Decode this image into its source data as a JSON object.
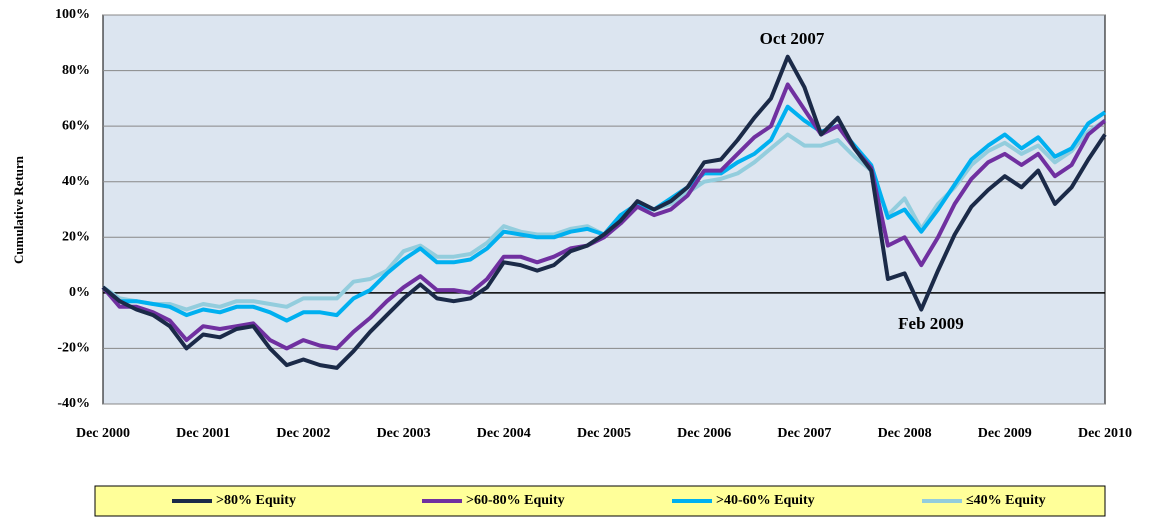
{
  "chart_data": {
    "type": "line",
    "y_label": "Cumulative Return",
    "annotations": [
      "Oct 2007",
      "Feb 2009"
    ],
    "categories": [
      "Dec 2000",
      null,
      null,
      null,
      null,
      null,
      "Dec 2001",
      null,
      null,
      null,
      null,
      null,
      "Dec 2002",
      null,
      null,
      null,
      null,
      null,
      "Dec 2003",
      null,
      null,
      null,
      null,
      null,
      "Dec 2004",
      null,
      null,
      null,
      null,
      null,
      "Dec 2005",
      null,
      null,
      null,
      null,
      null,
      "Dec 2006",
      null,
      null,
      null,
      null,
      null,
      "Dec 2007",
      null,
      null,
      null,
      null,
      null,
      "Dec 2008",
      null,
      null,
      null,
      null,
      null,
      "Dec 2009",
      null,
      null,
      null,
      null,
      null,
      "Dec 2010"
    ],
    "series": [
      {
        "name": ">80% Equity",
        "color": "#1b2a48",
        "values": [
          2,
          -3,
          -6,
          -8,
          -12,
          -20,
          -15,
          -16,
          -13,
          -12,
          -20,
          -26,
          -24,
          -26,
          -27,
          -21,
          -14,
          -8,
          -2,
          3,
          -2,
          -3,
          -2,
          2,
          11,
          10,
          8,
          10,
          15,
          17,
          21,
          26,
          33,
          30,
          33,
          38,
          47,
          48,
          55,
          63,
          70,
          85,
          74,
          57,
          63,
          52,
          44,
          5,
          7,
          -6,
          8,
          21,
          31,
          37,
          42,
          38,
          44,
          32,
          38,
          48,
          57
        ]
      },
      {
        "name": ">60-80% Equity",
        "color": "#7030a0",
        "values": [
          2,
          -5,
          -5,
          -7,
          -10,
          -17,
          -12,
          -13,
          -12,
          -11,
          -17,
          -20,
          -17,
          -19,
          -20,
          -14,
          -9,
          -3,
          2,
          6,
          1,
          1,
          0,
          5,
          13,
          13,
          11,
          13,
          16,
          17,
          20,
          25,
          31,
          28,
          30,
          35,
          44,
          44,
          50,
          56,
          60,
          75,
          66,
          57,
          60,
          52,
          45,
          17,
          20,
          10,
          20,
          32,
          41,
          47,
          50,
          46,
          50,
          42,
          46,
          57,
          62
        ]
      },
      {
        "name": ">40-60% Equity",
        "color": "#00b0f0",
        "values": [
          2,
          -3,
          -3,
          -4,
          -5,
          -8,
          -6,
          -7,
          -5,
          -5,
          -7,
          -10,
          -7,
          -7,
          -8,
          -2,
          1,
          7,
          12,
          16,
          11,
          11,
          12,
          16,
          22,
          21,
          20,
          20,
          22,
          23,
          21,
          28,
          32,
          30,
          34,
          38,
          43,
          43,
          47,
          50,
          55,
          67,
          62,
          58,
          60,
          53,
          46,
          27,
          30,
          22,
          30,
          39,
          48,
          53,
          57,
          52,
          56,
          49,
          52,
          61,
          65
        ]
      },
      {
        "name": "≤40% Equity",
        "color": "#93cddd",
        "values": [
          2,
          -2,
          -3,
          -4,
          -4,
          -6,
          -4,
          -5,
          -3,
          -3,
          -4,
          -5,
          -2,
          -2,
          -2,
          4,
          5,
          8,
          15,
          17,
          13,
          13,
          14,
          18,
          24,
          22,
          21,
          21,
          23,
          24,
          21,
          28,
          31,
          30,
          32,
          36,
          40,
          41,
          43,
          47,
          52,
          57,
          53,
          53,
          55,
          49,
          44,
          28,
          34,
          23,
          32,
          38,
          46,
          51,
          54,
          50,
          53,
          47,
          51,
          58,
          62
        ]
      }
    ],
    "ylim": [
      -40,
      100
    ],
    "yticks": [
      {
        "value": -40,
        "label": "-40%"
      },
      {
        "value": -20,
        "label": "-20%"
      },
      {
        "value": 0,
        "label": "0%"
      },
      {
        "value": 20,
        "label": "20%"
      },
      {
        "value": 40,
        "label": "40%"
      },
      {
        "value": 60,
        "label": "60%"
      },
      {
        "value": 80,
        "label": "80%"
      },
      {
        "value": 100,
        "label": "100%"
      }
    ],
    "grid": true
  }
}
